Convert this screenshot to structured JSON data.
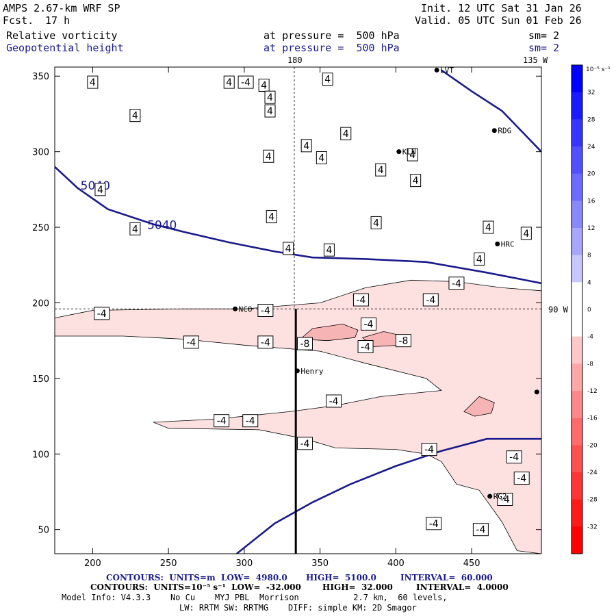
{
  "header": {
    "model": "AMPS 2.67-km WRF SP",
    "fcst_label": "Fcst.",
    "fcst_value": "17 h",
    "init": "Init. 12 UTC Sat 31 Jan 26",
    "valid": "Valid. 05 UTC Sun 01 Feb 26",
    "field1": "Relative vorticity",
    "field1_level": "at pressure =  500 hPa",
    "field1_sm": "sm= 2",
    "field2": "Geopotential height",
    "field2_level": "at pressure =  500 hPa",
    "field2_sm": "sm= 2"
  },
  "colors": {
    "height_contour": "#1a1a8c",
    "vort_fill_weak": "#fde0e0",
    "vort_fill_mid": "#f7b4b4"
  },
  "chart_data": {
    "type": "heatmap",
    "x_ticks": [
      200,
      250,
      300,
      350,
      400,
      450
    ],
    "y_ticks": [
      50,
      100,
      150,
      200,
      250,
      300,
      350
    ],
    "xlim": [
      175,
      496
    ],
    "ylim": [
      34,
      356
    ],
    "grid_labels": {
      "top_180": "180",
      "top_135w": "135 W",
      "right_90w": "90 W"
    },
    "height_contours": [
      {
        "label": "5040",
        "points": [
          [
            175,
            290
          ],
          [
            190,
            276
          ],
          [
            210,
            262
          ],
          [
            240,
            252
          ],
          [
            260,
            247
          ],
          [
            290,
            240
          ],
          [
            320,
            234
          ],
          [
            345,
            230
          ],
          [
            380,
            229
          ],
          [
            420,
            227
          ],
          [
            460,
            220
          ],
          [
            496,
            213
          ]
        ]
      },
      {
        "label": "5040",
        "points": [
          [
            430,
            354
          ],
          [
            450,
            340
          ],
          [
            470,
            327
          ],
          [
            496,
            300
          ]
        ]
      },
      {
        "label": "",
        "points": [
          [
            295,
            34
          ],
          [
            320,
            54
          ],
          [
            345,
            68
          ],
          [
            370,
            80
          ],
          [
            400,
            92
          ],
          [
            430,
            102
          ],
          [
            460,
            110
          ],
          [
            496,
            110
          ]
        ]
      }
    ],
    "height_labels": [
      {
        "text": "5040",
        "x": 192,
        "y": 275
      },
      {
        "text": "5040",
        "x": 236,
        "y": 249
      }
    ],
    "vort_regions": [
      {
        "level": -4,
        "points": [
          [
            175,
            190
          ],
          [
            200,
            195
          ],
          [
            260,
            196
          ],
          [
            300,
            196
          ],
          [
            350,
            200
          ],
          [
            380,
            210
          ],
          [
            410,
            215
          ],
          [
            440,
            214
          ],
          [
            470,
            210
          ],
          [
            496,
            208
          ],
          [
            496,
            34
          ],
          [
            480,
            36
          ],
          [
            470,
            55
          ],
          [
            455,
            76
          ],
          [
            440,
            80
          ],
          [
            430,
            95
          ],
          [
            420,
            100
          ],
          [
            400,
            103
          ],
          [
            360,
            104
          ],
          [
            340,
            110
          ],
          [
            310,
            116
          ],
          [
            250,
            117
          ],
          [
            240,
            121
          ],
          [
            280,
            123
          ],
          [
            330,
            128
          ],
          [
            360,
            132
          ],
          [
            390,
            138
          ],
          [
            430,
            142
          ],
          [
            420,
            150
          ],
          [
            380,
            160
          ],
          [
            350,
            168
          ],
          [
            300,
            172
          ],
          [
            260,
            176
          ],
          [
            220,
            178
          ],
          [
            175,
            178
          ]
        ]
      },
      {
        "level": -8,
        "points": [
          [
            337,
            176
          ],
          [
            345,
            183
          ],
          [
            365,
            186
          ],
          [
            375,
            182
          ],
          [
            373,
            177
          ],
          [
            355,
            175
          ]
        ]
      },
      {
        "level": -8,
        "points": [
          [
            378,
            177
          ],
          [
            392,
            181
          ],
          [
            405,
            178
          ],
          [
            403,
            172
          ],
          [
            385,
            171
          ]
        ]
      },
      {
        "level": -8,
        "points": [
          [
            445,
            128
          ],
          [
            455,
            138
          ],
          [
            465,
            134
          ],
          [
            463,
            127
          ],
          [
            452,
            125
          ]
        ]
      }
    ],
    "contour_labels": [
      {
        "text": "4",
        "x": 200,
        "y": 346
      },
      {
        "text": "4",
        "x": 290,
        "y": 346
      },
      {
        "text": "-4",
        "x": 301,
        "y": 346
      },
      {
        "text": "4",
        "x": 313,
        "y": 344
      },
      {
        "text": "4",
        "x": 317,
        "y": 336
      },
      {
        "text": "4",
        "x": 355,
        "y": 348
      },
      {
        "text": "4",
        "x": 317,
        "y": 327
      },
      {
        "text": "4",
        "x": 228,
        "y": 324
      },
      {
        "text": "4",
        "x": 367,
        "y": 312
      },
      {
        "text": "4",
        "x": 341,
        "y": 304
      },
      {
        "text": "4",
        "x": 316,
        "y": 297
      },
      {
        "text": "4",
        "x": 351,
        "y": 296
      },
      {
        "text": "4",
        "x": 411,
        "y": 298
      },
      {
        "text": "4",
        "x": 390,
        "y": 288
      },
      {
        "text": "4",
        "x": 413,
        "y": 281
      },
      {
        "text": "4",
        "x": 205,
        "y": 275
      },
      {
        "text": "4",
        "x": 318,
        "y": 257
      },
      {
        "text": "4",
        "x": 387,
        "y": 253
      },
      {
        "text": "4",
        "x": 461,
        "y": 250
      },
      {
        "text": "4",
        "x": 486,
        "y": 246
      },
      {
        "text": "4",
        "x": 228,
        "y": 249
      },
      {
        "text": "4",
        "x": 329,
        "y": 236
      },
      {
        "text": "4",
        "x": 356,
        "y": 235
      },
      {
        "text": "4",
        "x": 455,
        "y": 229
      },
      {
        "text": "-4",
        "x": 440,
        "y": 213
      },
      {
        "text": "-4",
        "x": 377,
        "y": 202
      },
      {
        "text": "-4",
        "x": 423,
        "y": 202
      },
      {
        "text": "-4",
        "x": 314,
        "y": 195
      },
      {
        "text": "-4",
        "x": 382,
        "y": 186
      },
      {
        "text": "-4",
        "x": 206,
        "y": 193
      },
      {
        "text": "-4",
        "x": 265,
        "y": 174
      },
      {
        "text": "-4",
        "x": 314,
        "y": 174
      },
      {
        "text": "-8",
        "x": 340,
        "y": 173
      },
      {
        "text": "-4",
        "x": 380,
        "y": 171
      },
      {
        "text": "-8",
        "x": 405,
        "y": 175
      },
      {
        "text": "-4",
        "x": 359,
        "y": 135
      },
      {
        "text": "-4",
        "x": 285,
        "y": 122
      },
      {
        "text": "-4",
        "x": 304,
        "y": 122
      },
      {
        "text": "-4",
        "x": 340,
        "y": 107
      },
      {
        "text": "-4",
        "x": 422,
        "y": 103
      },
      {
        "text": "-4",
        "x": 478,
        "y": 98
      },
      {
        "text": "-4",
        "x": 483,
        "y": 84
      },
      {
        "text": "-4",
        "x": 472,
        "y": 70
      },
      {
        "text": "-4",
        "x": 425,
        "y": 54
      },
      {
        "text": "-4",
        "x": 456,
        "y": 50
      }
    ],
    "stations": [
      {
        "name": "LVT",
        "x": 427,
        "y": 354
      },
      {
        "name": "RDG",
        "x": 465,
        "y": 314
      },
      {
        "name": "KLN",
        "x": 402,
        "y": 300
      },
      {
        "name": "HRC",
        "x": 467,
        "y": 239
      },
      {
        "name": "NCO",
        "x": 294,
        "y": 196
      },
      {
        "name": "Henry",
        "x": 335,
        "y": 155
      },
      {
        "name": "RG2",
        "x": 462,
        "y": 72
      },
      {
        "name": "",
        "x": 493,
        "y": 141
      }
    ],
    "cross_section": {
      "x": 334,
      "y_from": 34,
      "y_to": 196
    },
    "colorbar": {
      "unit_label": "10⁻⁵ s⁻¹",
      "ticks": [
        "32",
        "28",
        "24",
        "20",
        "16",
        "12",
        "8",
        "4",
        "0",
        "-4",
        "-8",
        "-12",
        "-16",
        "-20",
        "-24",
        "-28",
        "-32"
      ],
      "colors": [
        "#0000ff",
        "#1a1aff",
        "#3535ff",
        "#5050ff",
        "#6b6bff",
        "#8989ff",
        "#a7a7ff",
        "#c8c8ff",
        "#ffffff",
        "#ffffff",
        "#ffc8c8",
        "#ffa7a7",
        "#ff8989",
        "#ff6b6b",
        "#ff5050",
        "#ff3535",
        "#ff1a1a",
        "#ff0000"
      ]
    }
  },
  "footer": {
    "line1_a": "CONTOURS:  UNITS=m  LOW=  4980.0",
    "line1_b": "HIGH=  5100.0",
    "line1_c": "INTERVAL=  60.000",
    "line2_a": "CONTOURS:  UNITS=10⁻⁵ s⁻¹  LOW=  -32.000",
    "line2_b": "HIGH=  32.000",
    "line2_c": "INTERVAL=  4.0000",
    "line3": "Model Info: V4.3.3    No Cu    MYJ PBL  Morrison           2.7 km,  60 levels,",
    "line4": "LW: RRTM SW: RRTMG    DIFF: simple KM: 2D Smagor"
  }
}
